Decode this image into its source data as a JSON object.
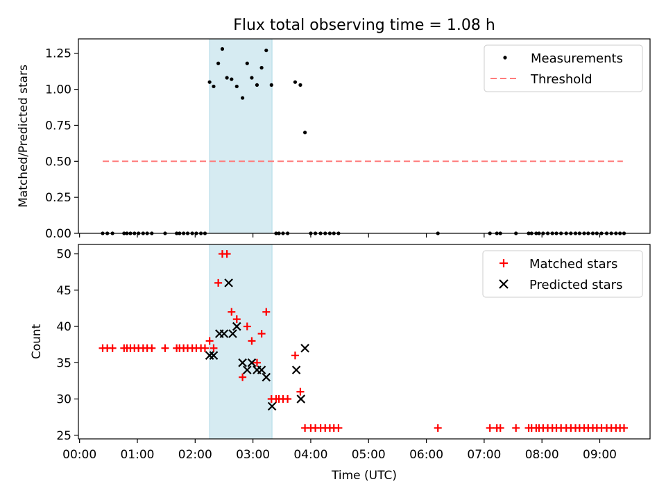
{
  "title": "Flux total observing time = 1.08 h",
  "xlabel": "Time (UTC)",
  "xticks": [
    "00:00",
    "01:00",
    "02:00",
    "03:00",
    "04:00",
    "05:00",
    "06:00",
    "07:00",
    "08:00",
    "09:00"
  ],
  "colors": {
    "measurements": "#000000",
    "threshold": "#ff7b7b",
    "matched": "#ff0000",
    "predicted": "#000000",
    "span": "#add8e6"
  },
  "chart_data": [
    {
      "type": "scatter",
      "ylabel": "Matched/Predicted stars",
      "xlim_hours": [
        -0.02,
        9.87
      ],
      "ylim": [
        0,
        1.35
      ],
      "yticks": [
        "0.00",
        "0.25",
        "0.50",
        "0.75",
        "1.00",
        "1.25"
      ],
      "shaded_span_hours": [
        2.25,
        3.33
      ],
      "legend_position": "upper right",
      "legend": {
        "measurements": "Measurements",
        "threshold": "Threshold"
      },
      "threshold": {
        "value": 0.5,
        "x_hours": [
          0.4,
          9.4
        ]
      },
      "series": [
        {
          "name": "Measurements",
          "x_hours": [
            0.4,
            0.48,
            0.57,
            0.77,
            0.82,
            0.88,
            0.95,
            1.02,
            1.1,
            1.17,
            1.25,
            1.48,
            1.68,
            1.73,
            1.8,
            1.87,
            1.95,
            2.02,
            2.1,
            2.17,
            2.25,
            2.32,
            2.4,
            2.47,
            2.55,
            2.63,
            2.72,
            2.82,
            2.9,
            2.98,
            3.07,
            3.15,
            3.23,
            3.32,
            3.4,
            3.45,
            3.52,
            3.6,
            3.73,
            3.82,
            3.9,
            4.0,
            4.08,
            4.17,
            4.25,
            4.33,
            4.4,
            4.48,
            6.2,
            7.1,
            7.22,
            7.28,
            7.55,
            7.77,
            7.82,
            7.9,
            7.95,
            8.02,
            8.1,
            8.18,
            8.25,
            8.33,
            8.42,
            8.5,
            8.58,
            8.65,
            8.73,
            8.8,
            8.88,
            8.95,
            9.03,
            9.12,
            9.2,
            9.28,
            9.35,
            9.42
          ],
          "y": [
            0,
            0,
            0,
            0,
            0,
            0,
            0,
            0,
            0,
            0,
            0,
            0,
            0,
            0,
            0,
            0,
            0,
            0,
            0,
            0,
            1.05,
            1.02,
            1.18,
            1.28,
            1.08,
            1.07,
            1.02,
            0.94,
            1.18,
            1.08,
            1.03,
            1.15,
            1.27,
            1.03,
            0,
            0,
            0,
            0,
            1.05,
            1.03,
            0.7,
            0,
            0,
            0,
            0,
            0,
            0,
            0,
            0,
            0,
            0,
            0,
            0,
            0,
            0,
            0,
            0,
            0,
            0,
            0,
            0,
            0,
            0,
            0,
            0,
            0,
            0,
            0,
            0,
            0,
            0,
            0,
            0,
            0,
            0,
            0
          ]
        }
      ]
    },
    {
      "type": "scatter",
      "ylabel": "Count",
      "xlim_hours": [
        -0.02,
        9.87
      ],
      "ylim": [
        24.5,
        51.3
      ],
      "yticks": [
        "25",
        "30",
        "35",
        "40",
        "45",
        "50"
      ],
      "shaded_span_hours": [
        2.25,
        3.33
      ],
      "legend_position": "upper right",
      "legend": {
        "matched": "Matched stars",
        "predicted": "Predicted stars"
      },
      "series": [
        {
          "name": "Matched stars",
          "x_hours": [
            0.4,
            0.48,
            0.57,
            0.77,
            0.82,
            0.88,
            0.95,
            1.02,
            1.1,
            1.17,
            1.25,
            1.48,
            1.68,
            1.73,
            1.8,
            1.87,
            1.95,
            2.02,
            2.1,
            2.17,
            2.25,
            2.32,
            2.4,
            2.47,
            2.55,
            2.63,
            2.72,
            2.82,
            2.9,
            2.98,
            3.07,
            3.15,
            3.23,
            3.32,
            3.4,
            3.45,
            3.52,
            3.6,
            3.73,
            3.82,
            3.9,
            4.0,
            4.08,
            4.17,
            4.25,
            4.33,
            4.4,
            4.48,
            6.2,
            7.1,
            7.22,
            7.28,
            7.55,
            7.77,
            7.82,
            7.9,
            7.95,
            8.02,
            8.1,
            8.18,
            8.25,
            8.33,
            8.42,
            8.5,
            8.58,
            8.65,
            8.73,
            8.8,
            8.88,
            8.95,
            9.03,
            9.12,
            9.2,
            9.28,
            9.35,
            9.42
          ],
          "y": [
            37,
            37,
            37,
            37,
            37,
            37,
            37,
            37,
            37,
            37,
            37,
            37,
            37,
            37,
            37,
            37,
            37,
            37,
            37,
            37,
            38,
            37,
            46,
            50,
            50,
            42,
            41,
            33,
            40,
            38,
            35,
            39,
            42,
            30,
            30,
            30,
            30,
            30,
            36,
            31,
            26,
            26,
            26,
            26,
            26,
            26,
            26,
            26,
            26,
            26,
            26,
            26,
            26,
            26,
            26,
            26,
            26,
            26,
            26,
            26,
            26,
            26,
            26,
            26,
            26,
            26,
            26,
            26,
            26,
            26,
            26,
            26,
            26,
            26,
            26,
            26
          ]
        },
        {
          "name": "Predicted stars",
          "x_hours": [
            2.25,
            2.32,
            2.42,
            2.5,
            2.58,
            2.65,
            2.72,
            2.82,
            2.9,
            2.98,
            3.07,
            3.15,
            3.23,
            3.33,
            3.75,
            3.83,
            3.9
          ],
          "y": [
            36,
            36,
            39,
            39,
            46,
            39,
            40,
            35,
            34,
            35,
            34,
            34,
            33,
            29,
            34,
            30,
            37
          ]
        }
      ]
    }
  ]
}
